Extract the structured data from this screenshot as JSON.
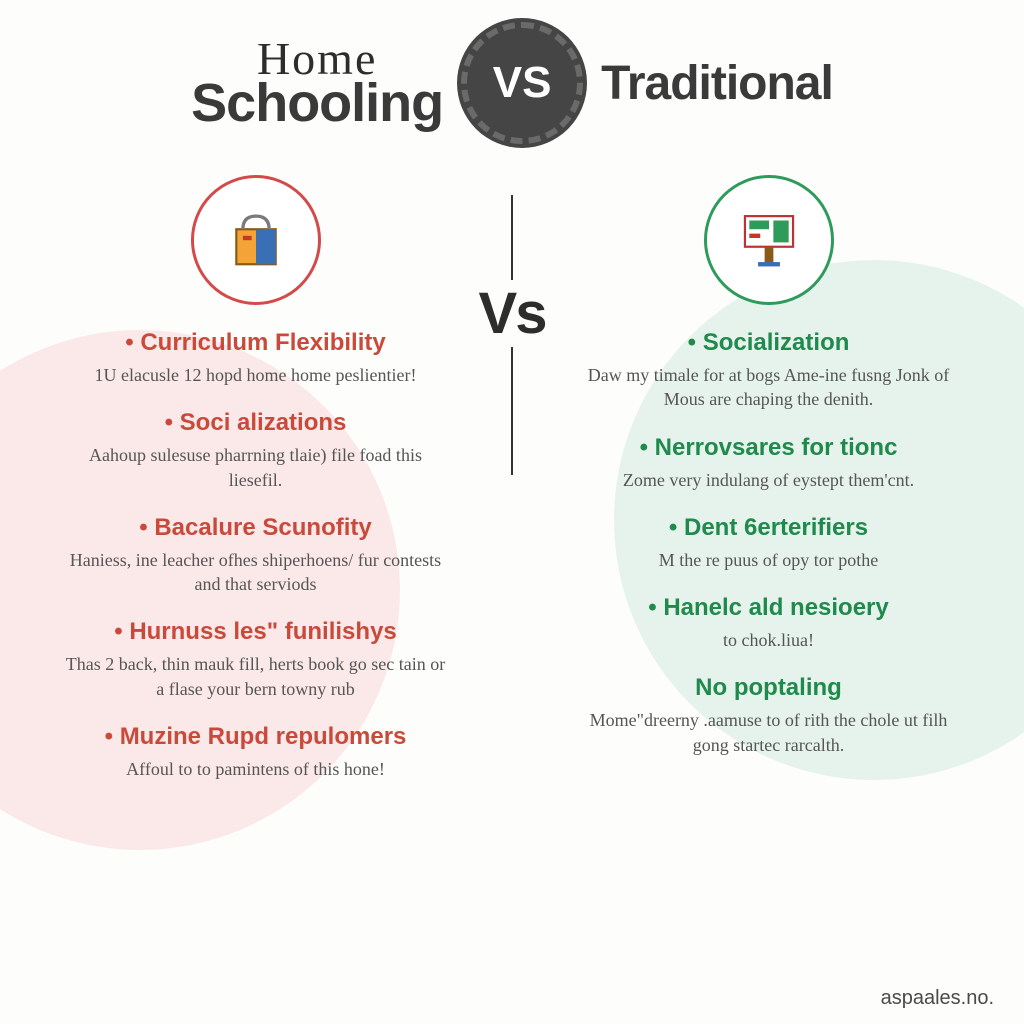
{
  "header": {
    "home": "Home",
    "schooling": "Schooling",
    "vs_badge": "VS",
    "traditional": "Traditional"
  },
  "mid_vs": "Vs",
  "colors": {
    "left_accent": "#c94a3b",
    "right_accent": "#1f8a4c",
    "left_bubble": "#fbe9e9",
    "right_bubble": "#e6f3ec",
    "badge_bg": "#454545",
    "text_body": "#555555",
    "background": "#fdfdfb"
  },
  "typography": {
    "title_fontsize": 54,
    "item_title_fontsize": 24,
    "item_desc_fontsize": 18,
    "vs_mid_fontsize": 58
  },
  "layout": {
    "type": "infographic",
    "columns": 2,
    "icon_circle_diameter": 130,
    "bubble_diameter": 520
  },
  "left": {
    "icon": "shopping-bag-books",
    "items": [
      {
        "title": "Curriculum Flexibility",
        "desc": "1U elacusle 12 hopd home home peslientier!"
      },
      {
        "title": "Soci alizations",
        "desc": "Aahoup sulesuse pharrning tlaie) file foad this liesefil."
      },
      {
        "title": "Bacalure Scunofity",
        "desc": "Haniess, ine leacher ofhes shiperhoens/ fur contests and that serviods"
      },
      {
        "title": "Hurnuss les\" funilishys",
        "desc": "Thas 2 back, thin mauk fill, herts book go sec tain or a flase your bern towny rub"
      },
      {
        "title": "Muzine Rupd repulomers",
        "desc": "Affoul to to pamintens of this hone!"
      }
    ]
  },
  "right": {
    "icon": "classroom-board",
    "items": [
      {
        "title": "Socialization",
        "desc": "Daw my timale for at bogs Ame-ine fusng Jonk of Mous are chaping the denith."
      },
      {
        "title": "Nerrovsares for tionc",
        "desc": "Zome very indulang of eystept them'cnt."
      },
      {
        "title": "Dent 6erterifiers",
        "desc": "M the re puus of opy tor pothe"
      },
      {
        "title": "Hanelc ald nesioery",
        "desc": "to chok.liua!"
      },
      {
        "title": "No poptaling",
        "desc": "Mome\"dreerny .aamuse to of rith the chole ut filh gong startec rarcalth.",
        "no_bullet": true
      }
    ]
  },
  "footer": "aspaales.no."
}
